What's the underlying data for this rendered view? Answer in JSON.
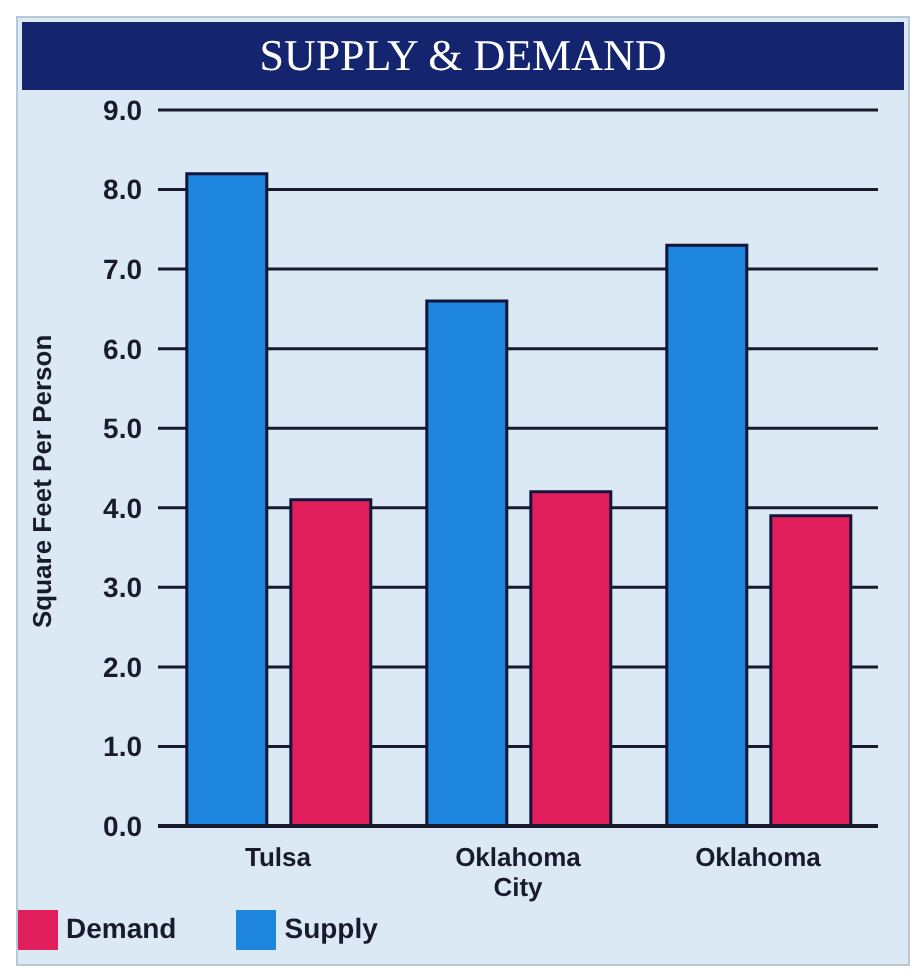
{
  "chart_data": {
    "type": "bar",
    "title": "SUPPLY & DEMAND",
    "ylabel": "Square Feet Per Person",
    "categories": [
      "Tulsa",
      "Oklahoma City",
      "Oklahoma"
    ],
    "series": [
      {
        "name": "Supply",
        "color": "#1e86de",
        "values": [
          8.2,
          6.6,
          7.3
        ]
      },
      {
        "name": "Demand",
        "color": "#e01f5c",
        "values": [
          4.1,
          4.2,
          3.9
        ]
      }
    ],
    "ylim": [
      0,
      9
    ],
    "yticks": [
      {
        "value": 0,
        "label": "0.0"
      },
      {
        "value": 1,
        "label": "1.0"
      },
      {
        "value": 2,
        "label": "2.0"
      },
      {
        "value": 3,
        "label": "3.0"
      },
      {
        "value": 4,
        "label": "4.0"
      },
      {
        "value": 5,
        "label": "5.0"
      },
      {
        "value": 6,
        "label": "6.0"
      },
      {
        "value": 7,
        "label": "7.0"
      },
      {
        "value": 8,
        "label": "8.0"
      },
      {
        "value": 9,
        "label": "9.0"
      }
    ],
    "grid": "y",
    "legend": "bottom left"
  }
}
